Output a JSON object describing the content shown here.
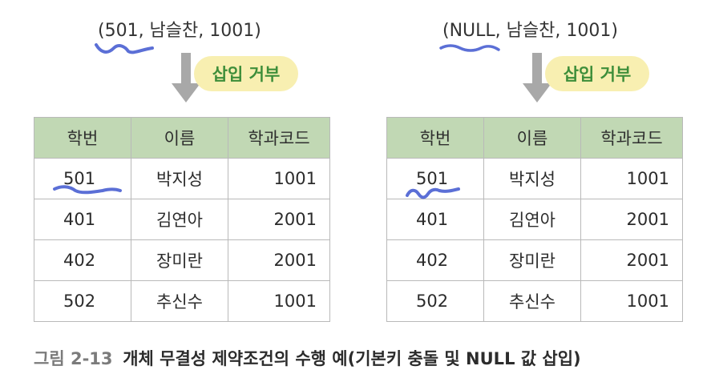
{
  "left": {
    "tuple": "(501, 남슬찬, 1001)",
    "badge": "삽입 거부",
    "table": {
      "headers": [
        "학번",
        "이름",
        "학과코드"
      ],
      "rows": [
        [
          "501",
          "박지성",
          "1001"
        ],
        [
          "401",
          "김연아",
          "2001"
        ],
        [
          "402",
          "장미란",
          "2001"
        ],
        [
          "502",
          "추신수",
          "1001"
        ]
      ]
    }
  },
  "right": {
    "tuple": "(NULL, 남슬찬, 1001)",
    "badge": "삽입 거부",
    "table": {
      "headers": [
        "학번",
        "이름",
        "학과코드"
      ],
      "rows": [
        [
          "501",
          "박지성",
          "1001"
        ],
        [
          "401",
          "김연아",
          "2001"
        ],
        [
          "402",
          "장미란",
          "2001"
        ],
        [
          "502",
          "추신수",
          "1001"
        ]
      ]
    }
  },
  "caption": {
    "figure": "그림 2-13",
    "text": "개체 무결성 제약조건의 수행 예(기본키 충돌 및 NULL 값 삽입)"
  },
  "colors": {
    "header_bg": "#c1d8b4",
    "badge_bg": "#f8efb1",
    "badge_text": "#3e8e3a",
    "arrow": "#a8a8a8",
    "squiggle": "#5b6fd6"
  }
}
